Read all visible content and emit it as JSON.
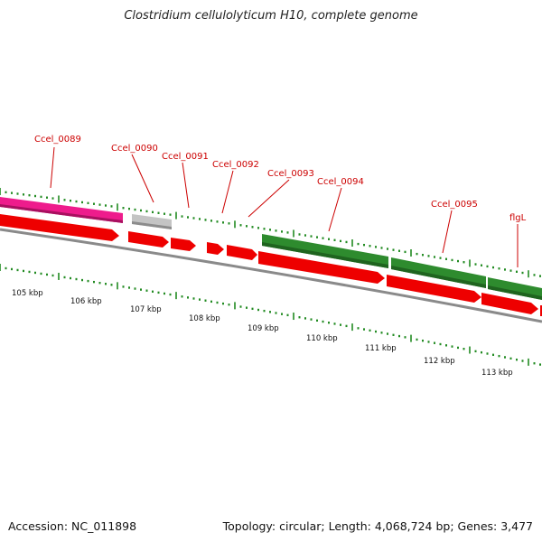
{
  "title": "Clostridium cellulolyticum H10, complete genome",
  "footer": {
    "accession": "Accession: NC_011898",
    "summary": "Topology: circular; Length: 4,068,724 bp; Genes: 3,477"
  },
  "colors": {
    "cds_red": "#ee0000",
    "gene_green": "#2e8b2e",
    "gene_pink": "#ee1c8c",
    "gene_gray": "#bbbbbb",
    "label_red": "#cc0000",
    "tick_green": "#228b22",
    "backbone": "#888888"
  },
  "scale_labels": [
    "105 kbp",
    "106 kbp",
    "107 kbp",
    "108 kbp",
    "109 kbp",
    "110 kbp",
    "111 kbp",
    "112 kbp",
    "113 kbp"
  ],
  "gene_labels": [
    "Ccel_0089",
    "Ccel_0090",
    "Ccel_0091",
    "Ccel_0092",
    "Ccel_0093",
    "Ccel_0094",
    "Ccel_0095",
    "flgL"
  ]
}
